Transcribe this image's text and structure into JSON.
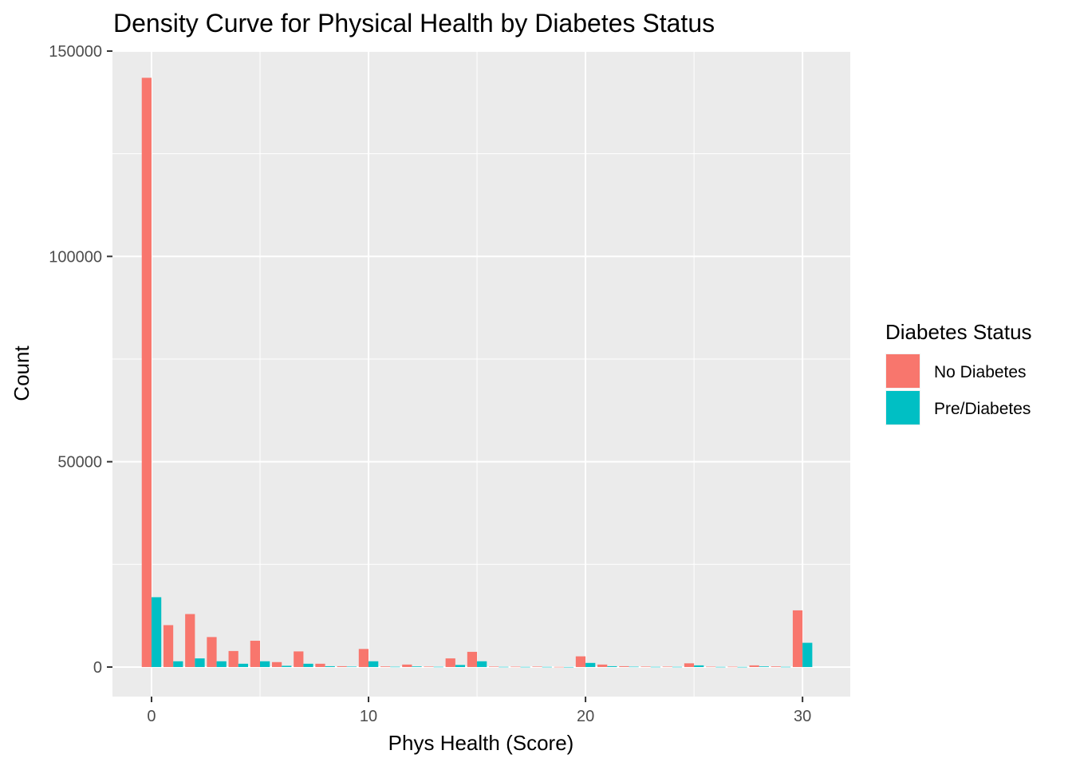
{
  "chart_data": {
    "type": "bar",
    "title": "Density Curve for Physical Health by Diabetes Status",
    "xlabel": "Phys Health (Score)",
    "ylabel": "Count",
    "xlim": [
      -1.8,
      32.2
    ],
    "ylim": [
      -7200,
      150200
    ],
    "x_ticks": [
      0,
      10,
      20,
      30
    ],
    "x_tick_labels": [
      "0",
      "10",
      "20",
      "30"
    ],
    "y_ticks": [
      0,
      50000,
      100000,
      150000
    ],
    "y_tick_labels": [
      "0",
      "50000",
      "100000",
      "150000"
    ],
    "grid": true,
    "background": "#ebebeb",
    "legend": {
      "title": "Diabetes Status",
      "position": "right"
    },
    "x": [
      0,
      1,
      2,
      3,
      4,
      5,
      6,
      7,
      8,
      9,
      10,
      11,
      12,
      13,
      14,
      15,
      16,
      17,
      18,
      19,
      20,
      21,
      22,
      23,
      24,
      25,
      26,
      27,
      28,
      29,
      30
    ],
    "series": [
      {
        "name": "No Diabetes",
        "color": "#f8766d",
        "values": [
          143500,
          10200,
          12900,
          7300,
          3900,
          6400,
          1200,
          3800,
          800,
          200,
          4400,
          150,
          600,
          120,
          2100,
          3700,
          110,
          90,
          110,
          40,
          2600,
          600,
          200,
          120,
          100,
          900,
          90,
          80,
          400,
          150,
          13800
        ]
      },
      {
        "name": "Pre/Diabetes",
        "color": "#00bfc4",
        "values": [
          17000,
          1400,
          2100,
          1400,
          800,
          1400,
          300,
          800,
          200,
          100,
          1400,
          70,
          150,
          60,
          500,
          1400,
          50,
          40,
          40,
          20,
          1000,
          200,
          80,
          50,
          50,
          400,
          40,
          30,
          150,
          50,
          5900
        ]
      }
    ]
  }
}
